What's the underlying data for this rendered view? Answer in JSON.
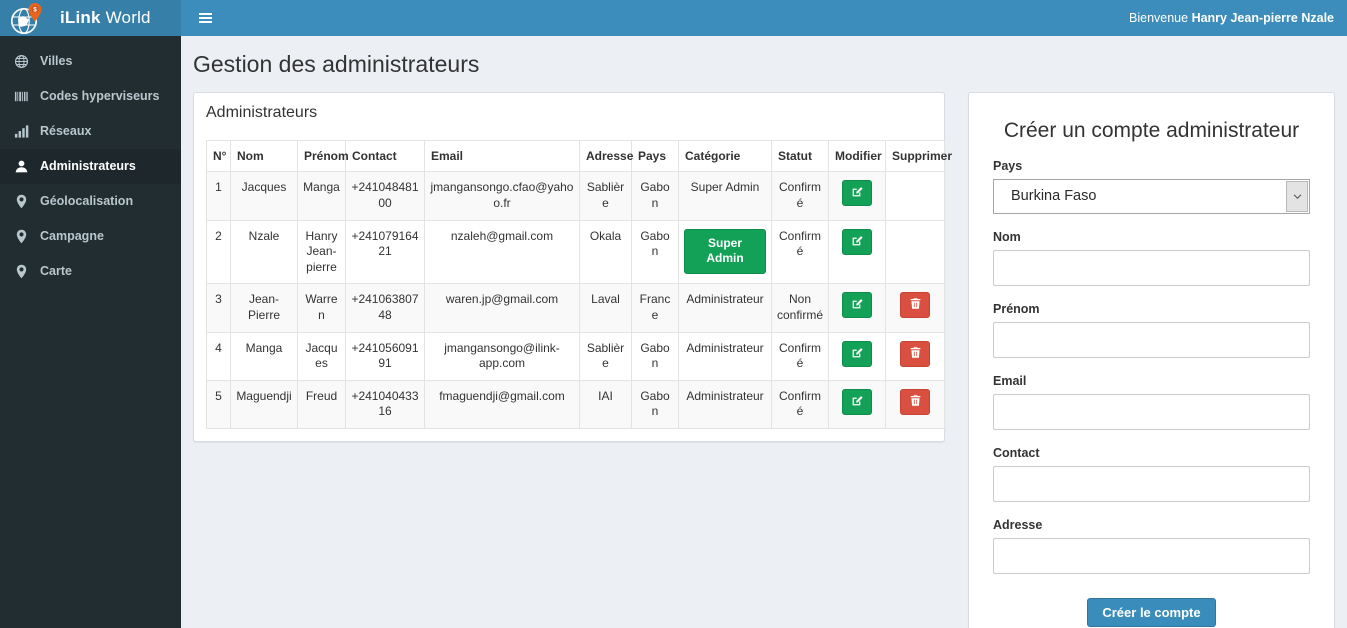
{
  "header": {
    "brand_bold": "iLink",
    "brand_light": "World",
    "welcome_prefix": "Bienvenue",
    "welcome_name": "Hanry Jean-pierre Nzale"
  },
  "sidebar": {
    "items": [
      {
        "label": "Villes",
        "icon": "globe-icon",
        "active": false
      },
      {
        "label": "Codes hyperviseurs",
        "icon": "barcode-icon",
        "active": false
      },
      {
        "label": "Réseaux",
        "icon": "bar-chart-icon",
        "active": false
      },
      {
        "label": "Administrateurs",
        "icon": "user-icon",
        "active": true
      },
      {
        "label": "Géolocalisation",
        "icon": "map-marker-icon",
        "active": false
      },
      {
        "label": "Campagne",
        "icon": "map-marker-icon",
        "active": false
      },
      {
        "label": "Carte",
        "icon": "map-marker-icon",
        "active": false
      }
    ]
  },
  "page": {
    "title": "Gestion des administrateurs"
  },
  "table_panel": {
    "title": "Administrateurs",
    "columns": [
      "N°",
      "Nom",
      "Prénom",
      "Contact",
      "Email",
      "Adresse",
      "Pays",
      "Catégorie",
      "Statut",
      "Modifier",
      "Supprimer"
    ],
    "rows": [
      {
        "num": "1",
        "nom": "Jacques",
        "prenom": "Manga",
        "contact": "+24104848100",
        "email": "jmangansongo.cfao@yahoo.fr",
        "adresse": "Sablière",
        "pays": "Gabon",
        "categorie": "Super Admin",
        "categorie_style": "text",
        "statut": "Confirmé",
        "can_delete": false
      },
      {
        "num": "2",
        "nom": "Nzale",
        "prenom": "Hanry Jean-pierre",
        "contact": "+24107916421",
        "email": "nzaleh@gmail.com",
        "adresse": "Okala",
        "pays": "Gabon",
        "categorie": "Super Admin",
        "categorie_style": "button",
        "statut": "Confirmé",
        "can_delete": false
      },
      {
        "num": "3",
        "nom": "Jean-Pierre",
        "prenom": "Warren",
        "contact": "+24106380748",
        "email": "waren.jp@gmail.com",
        "adresse": "Laval",
        "pays": "France",
        "categorie": "Administrateur",
        "categorie_style": "text",
        "statut": "Non confirmé",
        "can_delete": true
      },
      {
        "num": "4",
        "nom": "Manga",
        "prenom": "Jacques",
        "contact": "+24105609191",
        "email": "jmangansongo@ilink-app.com",
        "adresse": "Sablière",
        "pays": "Gabon",
        "categorie": "Administrateur",
        "categorie_style": "text",
        "statut": "Confirmé",
        "can_delete": true
      },
      {
        "num": "5",
        "nom": "Maguendji",
        "prenom": "Freud",
        "contact": "+24104043316",
        "email": "fmaguendji@gmail.com",
        "adresse": "IAI",
        "pays": "Gabon",
        "categorie": "Administrateur",
        "categorie_style": "text",
        "statut": "Confirmé",
        "can_delete": true
      }
    ]
  },
  "form": {
    "title": "Créer un compte administrateur",
    "fields": [
      {
        "label": "Pays",
        "type": "select",
        "value": "Burkina Faso"
      },
      {
        "label": "Nom",
        "type": "input",
        "value": ""
      },
      {
        "label": "Prénom",
        "type": "input",
        "value": ""
      },
      {
        "label": "Email",
        "type": "input",
        "value": ""
      },
      {
        "label": "Contact",
        "type": "input",
        "value": ""
      },
      {
        "label": "Adresse",
        "type": "input",
        "value": ""
      }
    ],
    "submit_label": "Créer le compte"
  },
  "colors": {
    "header_blue": "#3c8dbc",
    "logo_blue": "#367fa9",
    "sidebar_dark": "#222d32",
    "sidebar_active": "#1e282c",
    "page_bg": "#ecf0f5",
    "success_green": "#12a156",
    "danger_red": "#d95040",
    "primary_blue": "#3a8cba"
  }
}
